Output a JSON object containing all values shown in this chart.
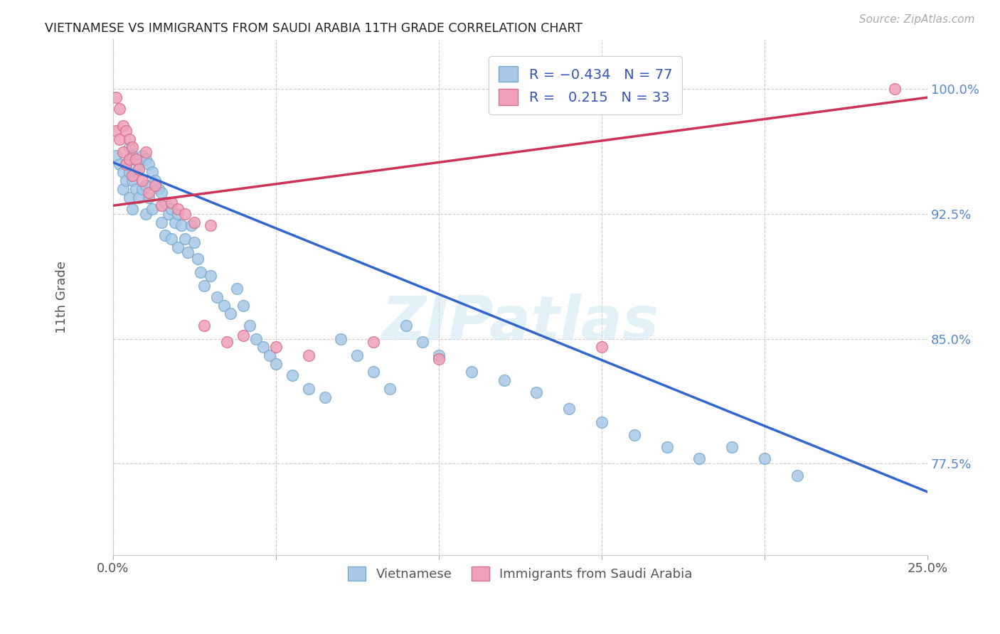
{
  "title": "VIETNAMESE VS IMMIGRANTS FROM SAUDI ARABIA 11TH GRADE CORRELATION CHART",
  "source": "Source: ZipAtlas.com",
  "xlim": [
    0.0,
    0.25
  ],
  "ylim": [
    0.72,
    1.03
  ],
  "ylabel": "11th Grade",
  "blue_color": "#a8c8e8",
  "pink_color": "#f0a0b8",
  "blue_edge_color": "#7aabcc",
  "pink_edge_color": "#d87090",
  "blue_line_color": "#3366cc",
  "pink_line_color": "#cc3355",
  "watermark": "ZIPatlas",
  "blue_scatter_x": [
    0.001,
    0.002,
    0.003,
    0.003,
    0.004,
    0.004,
    0.005,
    0.005,
    0.005,
    0.006,
    0.006,
    0.006,
    0.007,
    0.007,
    0.008,
    0.008,
    0.009,
    0.009,
    0.01,
    0.01,
    0.01,
    0.011,
    0.011,
    0.012,
    0.012,
    0.013,
    0.014,
    0.015,
    0.015,
    0.016,
    0.016,
    0.017,
    0.018,
    0.018,
    0.019,
    0.02,
    0.02,
    0.021,
    0.022,
    0.023,
    0.024,
    0.025,
    0.026,
    0.027,
    0.028,
    0.03,
    0.032,
    0.034,
    0.036,
    0.038,
    0.04,
    0.042,
    0.044,
    0.046,
    0.048,
    0.05,
    0.055,
    0.06,
    0.065,
    0.07,
    0.075,
    0.08,
    0.085,
    0.09,
    0.095,
    0.1,
    0.11,
    0.12,
    0.13,
    0.14,
    0.15,
    0.16,
    0.17,
    0.18,
    0.19,
    0.2,
    0.21
  ],
  "blue_scatter_y": [
    0.96,
    0.955,
    0.95,
    0.94,
    0.955,
    0.945,
    0.965,
    0.95,
    0.935,
    0.96,
    0.945,
    0.928,
    0.958,
    0.94,
    0.955,
    0.935,
    0.96,
    0.94,
    0.958,
    0.942,
    0.925,
    0.955,
    0.935,
    0.95,
    0.928,
    0.945,
    0.94,
    0.938,
    0.92,
    0.932,
    0.912,
    0.925,
    0.928,
    0.91,
    0.92,
    0.925,
    0.905,
    0.918,
    0.91,
    0.902,
    0.918,
    0.908,
    0.898,
    0.89,
    0.882,
    0.888,
    0.875,
    0.87,
    0.865,
    0.88,
    0.87,
    0.858,
    0.85,
    0.845,
    0.84,
    0.835,
    0.828,
    0.82,
    0.815,
    0.85,
    0.84,
    0.83,
    0.82,
    0.858,
    0.848,
    0.84,
    0.83,
    0.825,
    0.818,
    0.808,
    0.8,
    0.792,
    0.785,
    0.778,
    0.785,
    0.778,
    0.768
  ],
  "pink_scatter_x": [
    0.001,
    0.001,
    0.002,
    0.002,
    0.003,
    0.003,
    0.004,
    0.004,
    0.005,
    0.005,
    0.006,
    0.006,
    0.007,
    0.008,
    0.009,
    0.01,
    0.011,
    0.013,
    0.015,
    0.018,
    0.02,
    0.022,
    0.025,
    0.028,
    0.03,
    0.035,
    0.04,
    0.05,
    0.06,
    0.08,
    0.1,
    0.15,
    0.24
  ],
  "pink_scatter_y": [
    0.995,
    0.975,
    0.988,
    0.97,
    0.978,
    0.962,
    0.975,
    0.955,
    0.97,
    0.958,
    0.965,
    0.948,
    0.958,
    0.952,
    0.945,
    0.962,
    0.938,
    0.942,
    0.93,
    0.932,
    0.928,
    0.925,
    0.92,
    0.858,
    0.918,
    0.848,
    0.852,
    0.845,
    0.84,
    0.848,
    0.838,
    0.845,
    1.0
  ],
  "blue_line_x": [
    0.0,
    0.25
  ],
  "blue_line_y": [
    0.956,
    0.758
  ],
  "pink_line_x": [
    0.0,
    0.25
  ],
  "pink_line_y": [
    0.93,
    0.995
  ]
}
